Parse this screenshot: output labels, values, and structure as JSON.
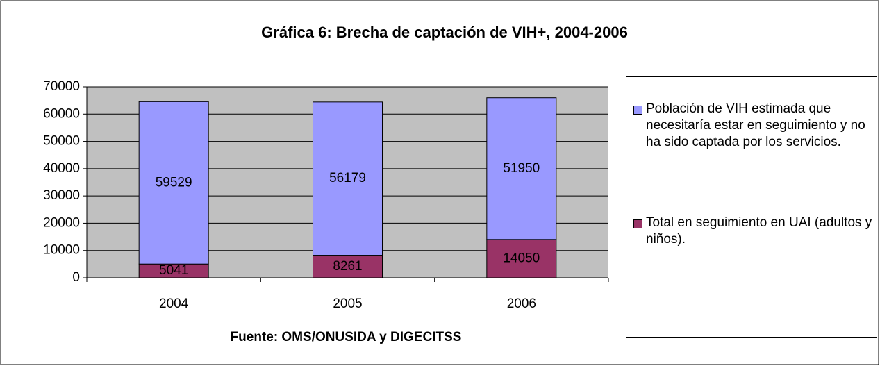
{
  "chart_data": {
    "type": "stacked_bar",
    "title": "Gráfica 6: Brecha de captación de VIH+, 2004-2006",
    "x_label": "Fuente: OMS/ONUSIDA y DIGECITSS",
    "categories": [
      "2004",
      "2005",
      "2006"
    ],
    "series": [
      {
        "name": "Total en seguimiento en UAI (adultos y niños).",
        "color": "#993366",
        "values": [
          5041,
          8261,
          14050
        ]
      },
      {
        "name": "Población de VIH estimada que necesitaría estar en seguimiento y no ha sido captada por los servicios.",
        "color": "#9999ff",
        "values": [
          59529,
          56179,
          51950
        ]
      }
    ],
    "ylim": [
      0,
      70000
    ],
    "yticks": [
      0,
      10000,
      20000,
      30000,
      40000,
      50000,
      60000,
      70000
    ],
    "grid": true,
    "legend": "right"
  }
}
